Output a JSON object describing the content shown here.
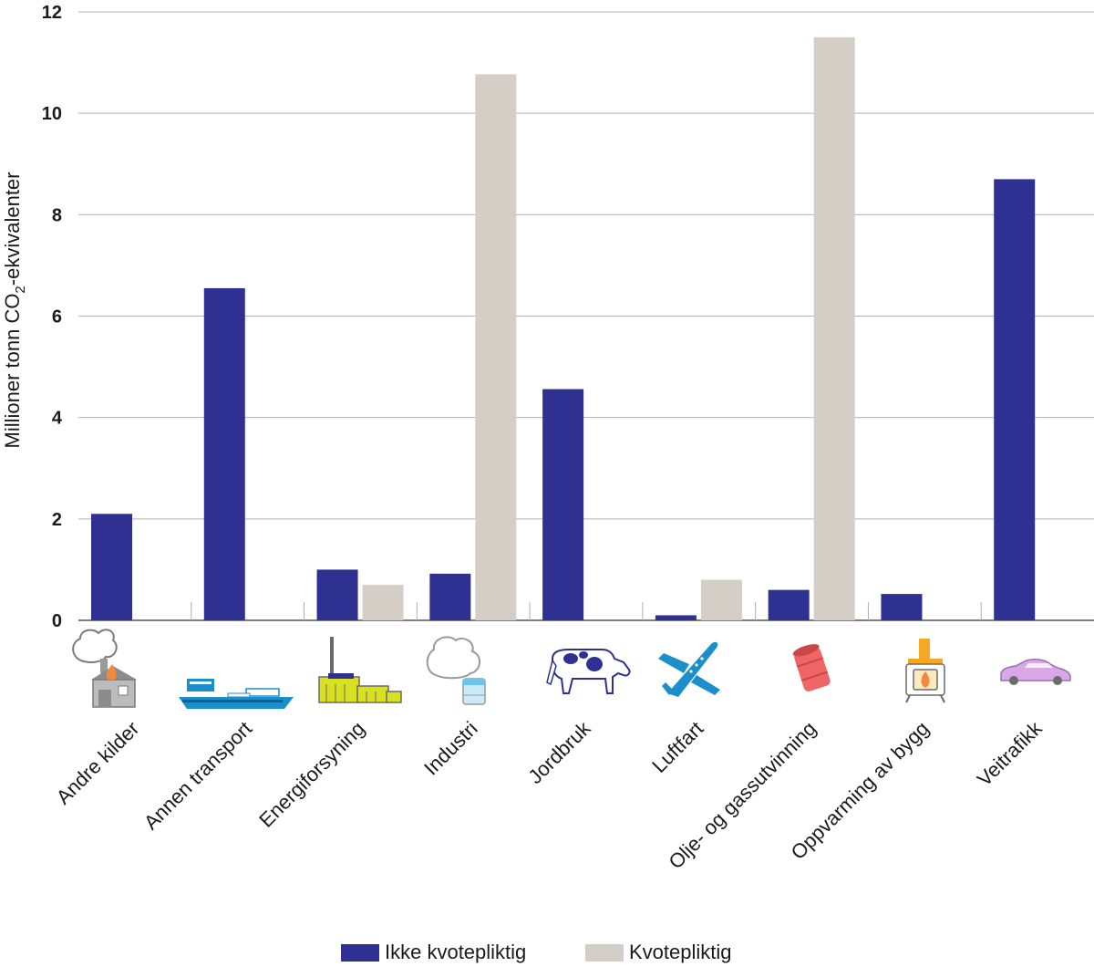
{
  "chart_data": {
    "type": "bar",
    "title": "",
    "xlabel": "",
    "ylabel": {
      "main": "Millioner tonn CO",
      "subscript": "2",
      "suffix": "-ekvivalenter"
    },
    "ylim": [
      0,
      12
    ],
    "yticks": [
      0,
      2,
      4,
      6,
      8,
      10,
      12
    ],
    "grid": true,
    "legend_position": "bottom-center",
    "categories": [
      "Andre kilder",
      "Annen transport",
      "Energiforsyning",
      "Industri",
      "Jordbruk",
      "Luftfart",
      "Olje- og gassutvinning",
      "Oppvarming av bygg",
      "Veitrafikk"
    ],
    "category_icons": [
      "house-smoke-icon",
      "ship-icon",
      "power-plant-icon",
      "factory-icon",
      "cow-icon",
      "airplane-icon",
      "oil-barrel-icon",
      "wood-stove-icon",
      "car-icon"
    ],
    "series": [
      {
        "name": "Ikke kvotepliktig",
        "color": "#2e3192",
        "values": [
          2.1,
          6.55,
          1.0,
          0.92,
          4.56,
          0.1,
          0.6,
          0.52,
          8.7
        ]
      },
      {
        "name": "Kvotepliktig",
        "color": "#d5cec6",
        "values": [
          0,
          0,
          0.7,
          10.77,
          0,
          0.8,
          11.5,
          0,
          0
        ]
      }
    ]
  }
}
